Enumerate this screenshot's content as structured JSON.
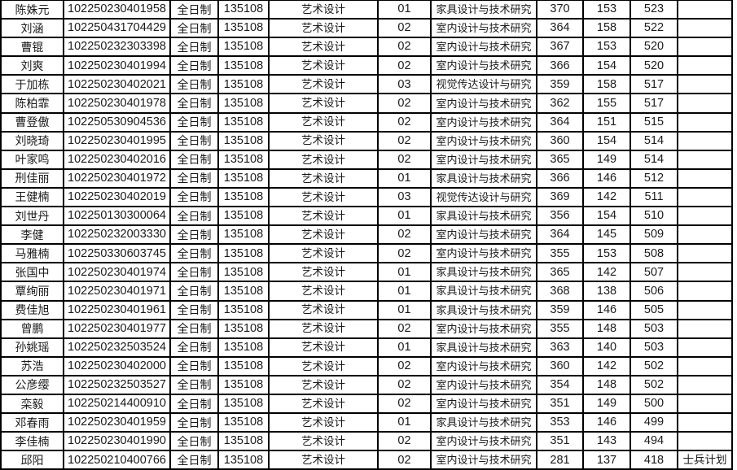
{
  "table": {
    "column_keys": [
      "name",
      "exam-id",
      "study-mode",
      "major-code",
      "major-name",
      "direction-code",
      "research-direction",
      "initial-score",
      "retest-score",
      "total-score",
      "remark"
    ],
    "rows": [
      [
        "陈姝元",
        "102250230401958",
        "全日制",
        "135108",
        "艺术设计",
        "01",
        "家具设计与技术研究",
        "370",
        "153",
        "523",
        ""
      ],
      [
        "刘涵",
        "102250431704429",
        "全日制",
        "135108",
        "艺术设计",
        "02",
        "室内设计与技术研究",
        "364",
        "158",
        "522",
        ""
      ],
      [
        "曹锟",
        "102250232303398",
        "全日制",
        "135108",
        "艺术设计",
        "02",
        "室内设计与技术研究",
        "367",
        "153",
        "520",
        ""
      ],
      [
        "刘爽",
        "102250230401994",
        "全日制",
        "135108",
        "艺术设计",
        "02",
        "室内设计与技术研究",
        "366",
        "154",
        "520",
        ""
      ],
      [
        "于加栋",
        "102250230402021",
        "全日制",
        "135108",
        "艺术设计",
        "03",
        "视觉传达设计与研究",
        "359",
        "158",
        "517",
        ""
      ],
      [
        "陈柏霏",
        "102250230401978",
        "全日制",
        "135108",
        "艺术设计",
        "02",
        "室内设计与技术研究",
        "362",
        "155",
        "517",
        ""
      ],
      [
        "曹登傲",
        "102250530904536",
        "全日制",
        "135108",
        "艺术设计",
        "02",
        "室内设计与技术研究",
        "364",
        "151",
        "515",
        ""
      ],
      [
        "刘晓琦",
        "102250230401995",
        "全日制",
        "135108",
        "艺术设计",
        "02",
        "室内设计与技术研究",
        "360",
        "154",
        "514",
        ""
      ],
      [
        "叶家鸣",
        "102250230402016",
        "全日制",
        "135108",
        "艺术设计",
        "02",
        "室内设计与技术研究",
        "365",
        "149",
        "514",
        ""
      ],
      [
        "刑佳丽",
        "102250230401972",
        "全日制",
        "135108",
        "艺术设计",
        "01",
        "家具设计与技术研究",
        "366",
        "146",
        "512",
        ""
      ],
      [
        "王健楠",
        "102250230402019",
        "全日制",
        "135108",
        "艺术设计",
        "03",
        "视觉传达设计与研究",
        "369",
        "142",
        "511",
        ""
      ],
      [
        "刘世丹",
        "102250130300064",
        "全日制",
        "135108",
        "艺术设计",
        "01",
        "家具设计与技术研究",
        "356",
        "154",
        "510",
        ""
      ],
      [
        "李健",
        "102250232003330",
        "全日制",
        "135108",
        "艺术设计",
        "02",
        "室内设计与技术研究",
        "364",
        "145",
        "509",
        ""
      ],
      [
        "马雅楠",
        "102250330603745",
        "全日制",
        "135108",
        "艺术设计",
        "02",
        "室内设计与技术研究",
        "355",
        "153",
        "508",
        ""
      ],
      [
        "张国中",
        "102250230401974",
        "全日制",
        "135108",
        "艺术设计",
        "01",
        "家具设计与技术研究",
        "365",
        "142",
        "507",
        ""
      ],
      [
        "覃绚丽",
        "102250230401971",
        "全日制",
        "135108",
        "艺术设计",
        "01",
        "家具设计与技术研究",
        "368",
        "138",
        "506",
        ""
      ],
      [
        "费佳旭",
        "102250230401961",
        "全日制",
        "135108",
        "艺术设计",
        "01",
        "家具设计与技术研究",
        "359",
        "146",
        "505",
        ""
      ],
      [
        "曾鹏",
        "102250230401977",
        "全日制",
        "135108",
        "艺术设计",
        "02",
        "室内设计与技术研究",
        "355",
        "148",
        "503",
        ""
      ],
      [
        "孙姚瑶",
        "102250232503524",
        "全日制",
        "135108",
        "艺术设计",
        "01",
        "家具设计与技术研究",
        "363",
        "140",
        "503",
        ""
      ],
      [
        "苏浩",
        "102250230402000",
        "全日制",
        "135108",
        "艺术设计",
        "02",
        "室内设计与技术研究",
        "360",
        "142",
        "502",
        ""
      ],
      [
        "公彦缨",
        "102250232503527",
        "全日制",
        "135108",
        "艺术设计",
        "02",
        "室内设计与技术研究",
        "354",
        "148",
        "502",
        ""
      ],
      [
        "栾毅",
        "102250214400910",
        "全日制",
        "135108",
        "艺术设计",
        "02",
        "室内设计与技术研究",
        "351",
        "149",
        "500",
        ""
      ],
      [
        "邓春雨",
        "102250230401959",
        "全日制",
        "135108",
        "艺术设计",
        "01",
        "家具设计与技术研究",
        "353",
        "146",
        "499",
        ""
      ],
      [
        "李佳楠",
        "102250230401990",
        "全日制",
        "135108",
        "艺术设计",
        "02",
        "室内设计与技术研究",
        "351",
        "143",
        "494",
        ""
      ],
      [
        "邱阳",
        "102250210400766",
        "全日制",
        "135108",
        "艺术设计",
        "02",
        "室内设计与技术研究",
        "281",
        "137",
        "418",
        "士兵计划"
      ]
    ]
  }
}
